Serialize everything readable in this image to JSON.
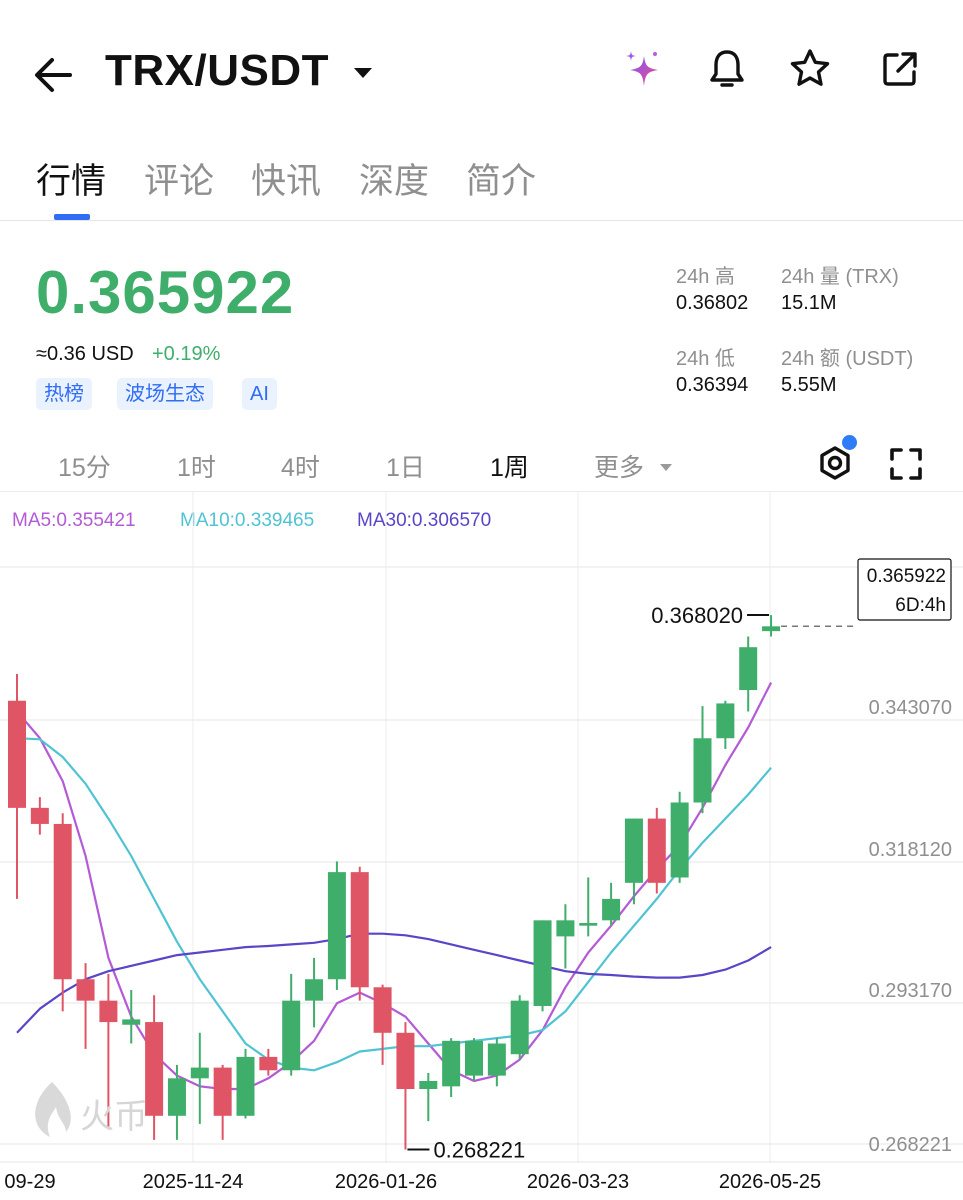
{
  "header": {
    "title": "TRX/USDT",
    "icons": [
      "back-arrow-icon",
      "caret-down-icon",
      "ai-sparkle-icon",
      "bell-icon",
      "star-icon",
      "share-icon"
    ]
  },
  "tabs": [
    {
      "label": "行情",
      "active": true
    },
    {
      "label": "评论",
      "active": false
    },
    {
      "label": "快讯",
      "active": false
    },
    {
      "label": "深度",
      "active": false
    },
    {
      "label": "简介",
      "active": false
    }
  ],
  "price": {
    "last": "0.365922",
    "usd_approx": "≈0.36 USD",
    "change_pct": "+0.19%",
    "up_color": "#3fae6b",
    "tags": [
      "热榜",
      "波场生态",
      "AI"
    ]
  },
  "stats": {
    "high_label": "24h 高",
    "high_value": "0.36802",
    "vol_label": "24h 量 (TRX)",
    "vol_value": "15.1M",
    "low_label": "24h 低",
    "low_value": "0.36394",
    "amount_label": "24h 额 (USDT)",
    "amount_value": "5.55M"
  },
  "intervals": [
    {
      "label": "15分",
      "active": false
    },
    {
      "label": "1时",
      "active": false
    },
    {
      "label": "4时",
      "active": false
    },
    {
      "label": "1日",
      "active": false
    },
    {
      "label": "1周",
      "active": true
    },
    {
      "label": "更多",
      "active": false
    }
  ],
  "ma_legend": [
    {
      "label": "MA5:0.355421",
      "color": "#b45ad6"
    },
    {
      "label": "MA10:0.339465",
      "color": "#4fc3d4"
    },
    {
      "label": "MA30:0.306570",
      "color": "#5a45c8"
    }
  ],
  "chart_data": {
    "type": "candlestick",
    "interval": "1周",
    "y_axis_labels": [
      "0.343070",
      "0.318120",
      "0.293170",
      "0.268221"
    ],
    "ylim": [
      0.2655,
      0.3738
    ],
    "x_axis_labels": [
      "09-29",
      "2025-11-24",
      "2026-01-26",
      "2026-03-23",
      "2026-05-25"
    ],
    "high_marker": "0.368020",
    "low_marker": "0.268221",
    "current_price_tag": "0.365922",
    "countdown": "6D:4h",
    "watermark": "火币",
    "up_color": "#3fae6b",
    "down_color": "#e05565",
    "candles": [
      {
        "o": 0.352,
        "h": 0.357,
        "l": 0.315,
        "c": 0.332
      },
      {
        "o": 0.332,
        "h": 0.334,
        "l": 0.327,
        "c": 0.329
      },
      {
        "o": 0.329,
        "h": 0.331,
        "l": 0.294,
        "c": 0.3
      },
      {
        "o": 0.3,
        "h": 0.303,
        "l": 0.287,
        "c": 0.296
      },
      {
        "o": 0.296,
        "h": 0.301,
        "l": 0.272,
        "c": 0.292
      },
      {
        "o": 0.2915,
        "h": 0.298,
        "l": 0.288,
        "c": 0.2925
      },
      {
        "o": 0.292,
        "h": 0.297,
        "l": 0.27,
        "c": 0.2745
      },
      {
        "o": 0.2745,
        "h": 0.284,
        "l": 0.27,
        "c": 0.2815
      },
      {
        "o": 0.2815,
        "h": 0.29,
        "l": 0.273,
        "c": 0.2835
      },
      {
        "o": 0.2835,
        "h": 0.284,
        "l": 0.27,
        "c": 0.2745
      },
      {
        "o": 0.2745,
        "h": 0.287,
        "l": 0.274,
        "c": 0.2855
      },
      {
        "o": 0.2855,
        "h": 0.287,
        "l": 0.282,
        "c": 0.283
      },
      {
        "o": 0.283,
        "h": 0.301,
        "l": 0.282,
        "c": 0.296
      },
      {
        "o": 0.296,
        "h": 0.304,
        "l": 0.291,
        "c": 0.3
      },
      {
        "o": 0.3,
        "h": 0.322,
        "l": 0.298,
        "c": 0.32
      },
      {
        "o": 0.32,
        "h": 0.321,
        "l": 0.296,
        "c": 0.2985
      },
      {
        "o": 0.2985,
        "h": 0.299,
        "l": 0.284,
        "c": 0.29
      },
      {
        "o": 0.29,
        "h": 0.292,
        "l": 0.2682,
        "c": 0.2795
      },
      {
        "o": 0.2795,
        "h": 0.2825,
        "l": 0.2735,
        "c": 0.281
      },
      {
        "o": 0.28,
        "h": 0.289,
        "l": 0.278,
        "c": 0.2885
      },
      {
        "o": 0.282,
        "h": 0.289,
        "l": 0.281,
        "c": 0.2885
      },
      {
        "o": 0.282,
        "h": 0.289,
        "l": 0.28,
        "c": 0.288
      },
      {
        "o": 0.286,
        "h": 0.297,
        "l": 0.285,
        "c": 0.296
      },
      {
        "o": 0.295,
        "h": 0.311,
        "l": 0.294,
        "c": 0.311
      },
      {
        "o": 0.308,
        "h": 0.314,
        "l": 0.302,
        "c": 0.311
      },
      {
        "o": 0.31,
        "h": 0.319,
        "l": 0.308,
        "c": 0.3105
      },
      {
        "o": 0.311,
        "h": 0.318,
        "l": 0.31,
        "c": 0.315
      },
      {
        "o": 0.318,
        "h": 0.33,
        "l": 0.314,
        "c": 0.33
      },
      {
        "o": 0.33,
        "h": 0.332,
        "l": 0.316,
        "c": 0.318
      },
      {
        "o": 0.319,
        "h": 0.335,
        "l": 0.318,
        "c": 0.333
      },
      {
        "o": 0.333,
        "h": 0.351,
        "l": 0.331,
        "c": 0.345
      },
      {
        "o": 0.345,
        "h": 0.352,
        "l": 0.343,
        "c": 0.3515
      },
      {
        "o": 0.354,
        "h": 0.364,
        "l": 0.35,
        "c": 0.362
      },
      {
        "o": 0.365,
        "h": 0.368,
        "l": 0.364,
        "c": 0.3659
      }
    ],
    "series": [
      {
        "name": "MA5",
        "color": "#b45ad6",
        "values": [
          0.35,
          0.345,
          0.337,
          0.323,
          0.304,
          0.293,
          0.286,
          0.282,
          0.28,
          0.2795,
          0.2795,
          0.2815,
          0.2845,
          0.2885,
          0.2955,
          0.2975,
          0.2955,
          0.293,
          0.288,
          0.283,
          0.281,
          0.282,
          0.285,
          0.2905,
          0.2985,
          0.305,
          0.31,
          0.3155,
          0.3205,
          0.325,
          0.332,
          0.34,
          0.347,
          0.3554
        ]
      },
      {
        "name": "MA10",
        "color": "#4fc3d4",
        "values": [
          0.345,
          0.3448,
          0.3415,
          0.3365,
          0.33,
          0.323,
          0.315,
          0.307,
          0.3,
          0.294,
          0.288,
          0.285,
          0.2835,
          0.283,
          0.2845,
          0.2865,
          0.287,
          0.2875,
          0.2875,
          0.288,
          0.2885,
          0.289,
          0.2895,
          0.2905,
          0.294,
          0.2995,
          0.305,
          0.31,
          0.315,
          0.3205,
          0.3255,
          0.33,
          0.3345,
          0.3395
        ]
      },
      {
        "name": "MA30",
        "color": "#5a45c8",
        "values": [
          0.29,
          0.2945,
          0.2975,
          0.3,
          0.3015,
          0.3025,
          0.3035,
          0.3045,
          0.305,
          0.3055,
          0.306,
          0.3062,
          0.3065,
          0.3068,
          0.3075,
          0.3085,
          0.3085,
          0.3082,
          0.3075,
          0.3065,
          0.3055,
          0.3045,
          0.3035,
          0.3025,
          0.3015,
          0.301,
          0.3008,
          0.3005,
          0.3003,
          0.3003,
          0.3008,
          0.3018,
          0.3035,
          0.306
        ]
      }
    ]
  }
}
